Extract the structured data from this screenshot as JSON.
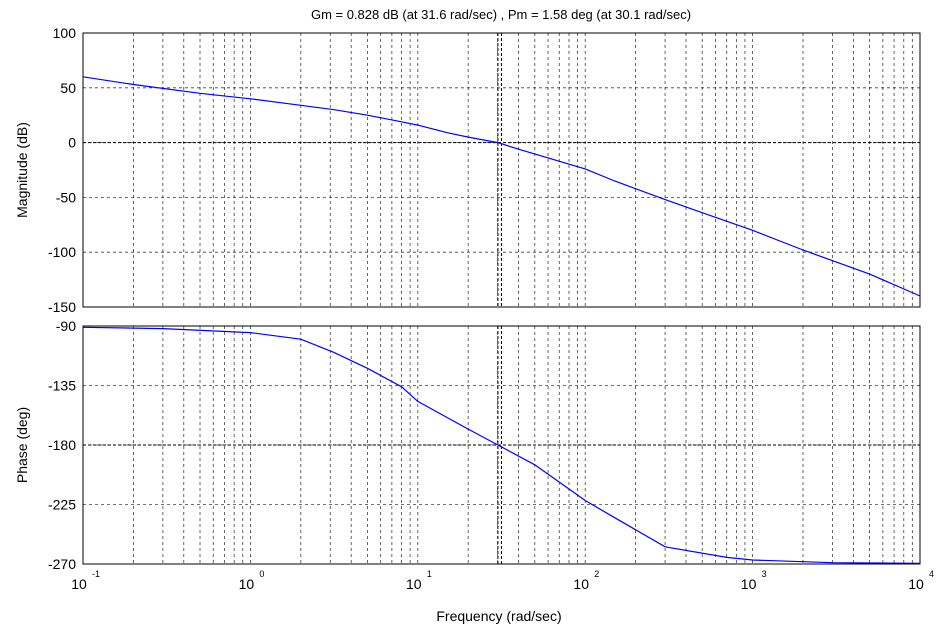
{
  "chart_data": [
    {
      "type": "line",
      "title": "Gm = 0.828 dB (at 31.6 rad/sec) ,  Pm = 1.58 deg (at 30.1 rad/sec)",
      "xlabel": "",
      "ylabel": "Magnitude (dB)",
      "xscale": "log",
      "xlim": [
        0.1,
        10000
      ],
      "ylim": [
        -150,
        100
      ],
      "yticks": [
        "100",
        "50",
        "0",
        "-50",
        "-100",
        "-150"
      ],
      "grid": true,
      "reference_lines": {
        "y": 0,
        "x": [
          30.1,
          31.6
        ]
      },
      "series": [
        {
          "color": "#0000ff",
          "x": [
            0.1,
            0.2,
            0.5,
            1,
            2,
            3.16,
            5,
            8,
            10,
            15,
            20,
            30.1,
            40,
            60,
            100,
            150,
            300,
            500,
            1000,
            2000,
            5000,
            10000
          ],
          "y": [
            60,
            53,
            45,
            40,
            34,
            30,
            25,
            19,
            16,
            9,
            5,
            0,
            -6,
            -14,
            -24,
            -35,
            -52,
            -64,
            -80,
            -98,
            -120,
            -140
          ]
        }
      ]
    },
    {
      "type": "line",
      "xlabel": "Frequency  (rad/sec)",
      "ylabel": "Phase (deg)",
      "xscale": "log",
      "xlim": [
        0.1,
        10000
      ],
      "ylim": [
        -270,
        -90
      ],
      "yticks": [
        "-90",
        "-135",
        "-180",
        "-225",
        "-270"
      ],
      "xtick_values": [
        0.1,
        1,
        10,
        100,
        1000,
        10000
      ],
      "xticks": [
        {
          "base": "10",
          "exp": "-1"
        },
        {
          "base": "10",
          "exp": "0"
        },
        {
          "base": "10",
          "exp": "1"
        },
        {
          "base": "10",
          "exp": "2"
        },
        {
          "base": "10",
          "exp": "3"
        },
        {
          "base": "10",
          "exp": "4"
        }
      ],
      "grid": true,
      "reference_lines": {
        "y": -180,
        "x": [
          30.1,
          31.6
        ]
      },
      "series": [
        {
          "color": "#0000ff",
          "x": [
            0.1,
            0.3,
            1,
            2,
            3.16,
            5,
            8,
            10,
            20,
            30.1,
            50,
            100,
            150,
            300,
            700,
            1000,
            3000,
            10000
          ],
          "y": [
            -91,
            -92,
            -95,
            -100,
            -110,
            -122,
            -136,
            -147,
            -168,
            -180,
            -195,
            -222,
            -235,
            -257,
            -265,
            -267,
            -269,
            -269.5
          ]
        }
      ]
    }
  ]
}
